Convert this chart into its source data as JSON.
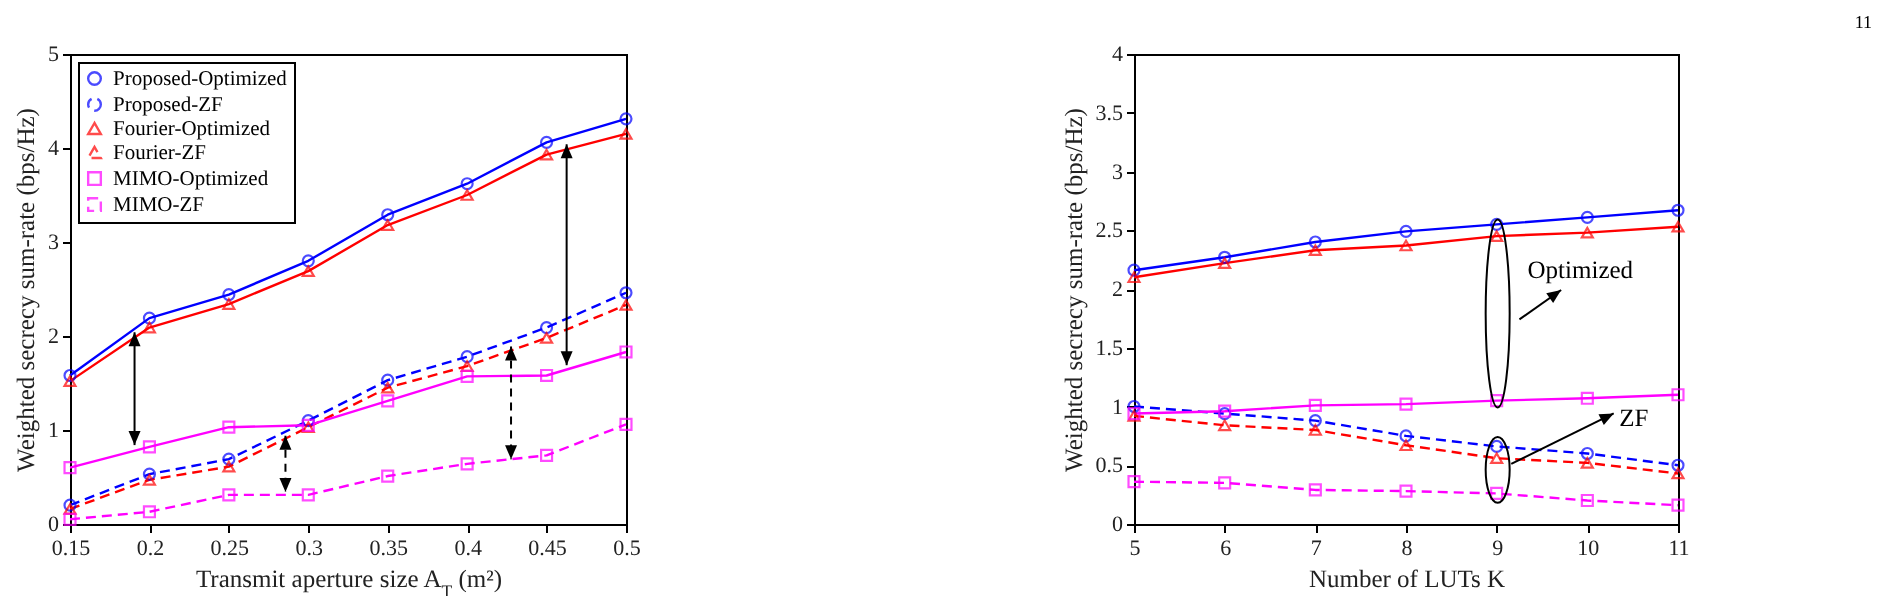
{
  "chart_data": [
    {
      "type": "line",
      "xlabel": "Transmit aperture size A$_{T}$ (m²)",
      "ylabel": "Weighted secrecy sum-rate (bps/Hz)",
      "x": [
        0.15,
        0.2,
        0.25,
        0.3,
        0.35,
        0.4,
        0.45,
        0.5
      ],
      "xlim": [
        0.15,
        0.5
      ],
      "xticks": [
        0.15,
        0.2,
        0.25,
        0.3,
        0.35,
        0.4,
        0.45,
        0.5
      ],
      "ylim": [
        0,
        5
      ],
      "yticks": [
        0,
        1,
        2,
        3,
        4,
        5
      ],
      "legend": "top left",
      "series": [
        {
          "name": "Proposed-Optimized",
          "color": "#0000ff",
          "marker": "circle",
          "line_style": "solid",
          "values": [
            1.58,
            2.19,
            2.44,
            2.8,
            3.29,
            3.62,
            4.06,
            4.31
          ]
        },
        {
          "name": "Proposed-ZF",
          "color": "#0000ff",
          "marker": "circle",
          "line_style": "dashed",
          "values": [
            0.2,
            0.53,
            0.69,
            1.1,
            1.53,
            1.78,
            2.09,
            2.46
          ]
        },
        {
          "name": "Fourier-Optimized",
          "color": "#ff0000",
          "marker": "triangle",
          "line_style": "solid",
          "values": [
            1.52,
            2.09,
            2.34,
            2.69,
            3.18,
            3.5,
            3.93,
            4.15
          ]
        },
        {
          "name": "Fourier-ZF",
          "color": "#ff0000",
          "marker": "triangle",
          "line_style": "dashed",
          "values": [
            0.16,
            0.47,
            0.61,
            1.03,
            1.45,
            1.68,
            1.98,
            2.33
          ]
        },
        {
          "name": "MIMO-Optimized",
          "color": "#ff00ff",
          "marker": "square",
          "line_style": "solid",
          "values": [
            0.6,
            0.82,
            1.03,
            1.05,
            1.31,
            1.57,
            1.58,
            1.83
          ]
        },
        {
          "name": "MIMO-ZF",
          "color": "#ff00ff",
          "marker": "square",
          "line_style": "dashed",
          "values": [
            0.05,
            0.13,
            0.31,
            0.31,
            0.51,
            0.64,
            0.73,
            1.06
          ]
        }
      ]
    },
    {
      "type": "line",
      "xlabel": "Number of LUTs K",
      "ylabel": "Weighted secrecy sum-rate (bps/Hz)",
      "x": [
        5,
        6,
        7,
        8,
        9,
        10,
        11
      ],
      "xlim": [
        5,
        11
      ],
      "xticks": [
        5,
        6,
        7,
        8,
        9,
        10,
        11
      ],
      "ylim": [
        0,
        4
      ],
      "yticks": [
        0,
        0.5,
        1,
        1.5,
        2,
        2.5,
        3,
        3.5,
        4
      ],
      "legend": "top left",
      "annotations": [
        "Optimized",
        {
          "text": "ZF",
          "x": 9.15,
          "y": 0.52
        },
        "11"
      ],
      "series": [
        {
          "name": "Proposed-Optimized",
          "color": "#0000ff",
          "marker": "circle",
          "line_style": "solid",
          "values": [
            2.16,
            2.27,
            2.4,
            2.49,
            2.55,
            2.61,
            2.67
          ]
        },
        {
          "name": "Proposed-ZF",
          "color": "#0000ff",
          "marker": "circle",
          "line_style": "dashed",
          "values": [
            1.0,
            0.94,
            0.88,
            0.75,
            0.66,
            0.6,
            0.5
          ]
        },
        {
          "name": "Fourier-Optimized",
          "color": "#ff0000",
          "marker": "triangle",
          "line_style": "solid",
          "values": [
            2.1,
            2.22,
            2.33,
            2.37,
            2.45,
            2.48,
            2.53
          ]
        },
        {
          "name": "Fourier-ZF",
          "color": "#ff0000",
          "marker": "triangle",
          "line_style": "dashed",
          "values": [
            0.92,
            0.84,
            0.8,
            0.67,
            0.56,
            0.52,
            0.43
          ]
        },
        {
          "name": "MIMO-Optimized",
          "color": "#ff00ff",
          "marker": "square",
          "line_style": "solid",
          "values": [
            0.94,
            0.96,
            1.01,
            1.02,
            1.05,
            1.07,
            1.1
          ]
        },
        {
          "name": "MIMO-ZF",
          "color": "#ff00ff",
          "marker": "square",
          "line_style": "dashed",
          "values": [
            0.36,
            0.35,
            0.29,
            0.28,
            0.26,
            0.2,
            0.16
          ]
        }
      ]
    }
  ]
}
